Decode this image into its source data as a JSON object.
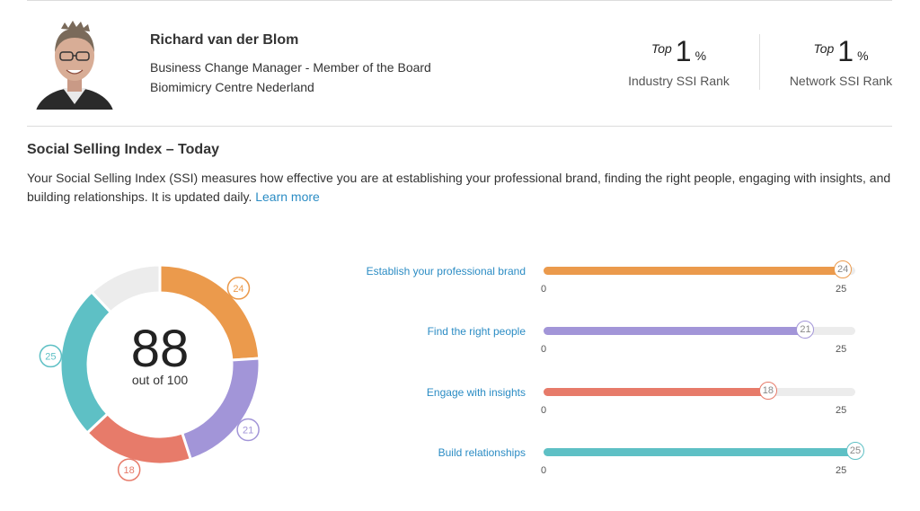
{
  "profile": {
    "name": "Richard van der Blom",
    "job_title": "Business Change Manager - Member of the Board",
    "organization": "Biomimicry Centre Nederland"
  },
  "ranks": {
    "industry": {
      "prefix": "Top",
      "value": "1",
      "unit": "%",
      "label": "Industry SSI Rank"
    },
    "network": {
      "prefix": "Top",
      "value": "1",
      "unit": "%",
      "label": "Network SSI Rank"
    }
  },
  "ssi": {
    "title": "Social Selling Index – Today",
    "description": "Your Social Selling Index (SSI) measures how effective you are at establishing your professional brand, finding the right people, engaging with insights, and building relationships. It is updated daily.",
    "learn_more": "Learn more",
    "score": "88",
    "score_caption": "out of 100",
    "max_total": 100
  },
  "colors": {
    "brand": "#eb9a4c",
    "people": "#a295d8",
    "insights": "#e77b6a",
    "relationships": "#5ec0c5",
    "remaining": "#ececec",
    "link": "#2b8cc4"
  },
  "chart_data": {
    "type": "bar",
    "categories": [
      "Establish your professional brand",
      "Find the right people",
      "Engage with insights",
      "Build relationships"
    ],
    "values": [
      24,
      21,
      18,
      25
    ],
    "value_labels": [
      "24",
      "21",
      "18",
      "25"
    ],
    "xlim": [
      0,
      25
    ],
    "axis_min_label": "0",
    "axis_max_label": "25"
  }
}
